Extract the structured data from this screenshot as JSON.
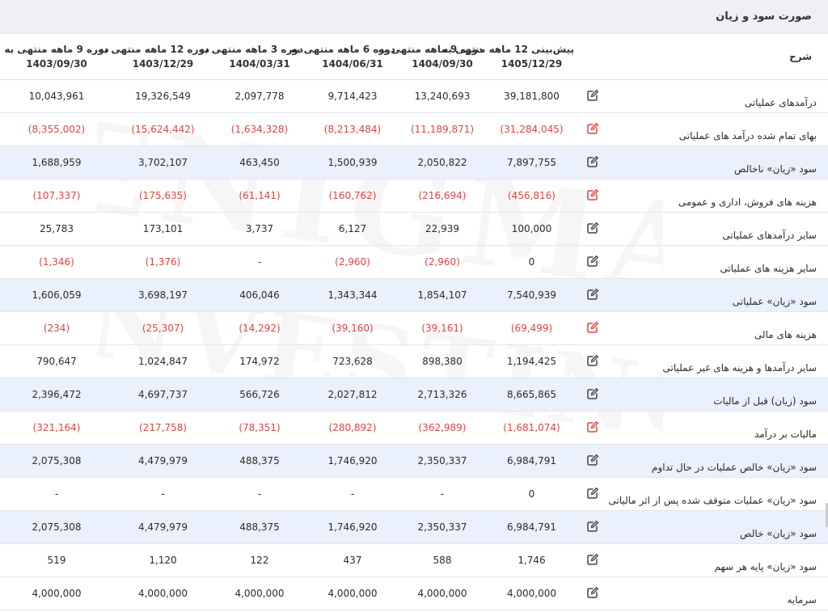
{
  "panel": {
    "title": "صورت سود و زیان"
  },
  "watermark": {
    "line1": "ENIGMA",
    "line2": "INVESTING"
  },
  "colors": {
    "highlight_row": "#eaf0fc",
    "negative": "#e0443e",
    "edit_dark": "#444444",
    "edit_red": "#e0443e"
  },
  "table": {
    "desc_header": "شرح",
    "periods": [
      {
        "line1": "پیش‌بینی 12 ماهه منتهی به",
        "line2": "1405/12/29"
      },
      {
        "line1": "دوره 9 ماهه منتهی به",
        "line2": "1404/09/30"
      },
      {
        "line1": "دوره 6 ماهه منتهی به",
        "line2": "1404/06/31"
      },
      {
        "line1": "دوره 3 ماهه منتهی به",
        "line2": "1404/03/31"
      },
      {
        "line1": "دوره 12 ماهه منتهی به",
        "line2": "1403/12/29"
      },
      {
        "line1": "دوره 9 ماهه منتهی به",
        "line2": "1403/09/30"
      }
    ],
    "rows": [
      {
        "label": "درآمدهای عملیاتی",
        "hl": false,
        "neg": false,
        "icon": "edit-icon",
        "values": [
          "39,181,800",
          "13,240,693",
          "9,714,423",
          "2,097,778",
          "19,326,549",
          "10,043,961"
        ]
      },
      {
        "label": "بهای تمام شده درآمد های عملیاتی",
        "hl": false,
        "neg": true,
        "icon": "edit-icon-red",
        "values": [
          "(31,284,045)",
          "(11,189,871)",
          "(8,213,484)",
          "(1,634,328)",
          "(15,624,442)",
          "(8,355,002)"
        ]
      },
      {
        "label": "سود «زیان» ناخالص",
        "hl": true,
        "neg": false,
        "icon": "edit-icon",
        "values": [
          "7,897,755",
          "2,050,822",
          "1,500,939",
          "463,450",
          "3,702,107",
          "1,688,959"
        ]
      },
      {
        "label": "هزینه های فروش، اداری و عمومی",
        "hl": false,
        "neg": true,
        "icon": "edit-icon-red",
        "values": [
          "(456,816)",
          "(216,694)",
          "(160,762)",
          "(61,141)",
          "(175,635)",
          "(107,337)"
        ]
      },
      {
        "label": "سایر درآمدهای عملیاتی",
        "hl": false,
        "neg": false,
        "icon": "edit-icon",
        "values": [
          "100,000",
          "22,939",
          "6,127",
          "3,737",
          "173,101",
          "25,783"
        ]
      },
      {
        "label": "سایر هزینه های عملیاتی",
        "hl": false,
        "neg": true,
        "icon": "edit-icon",
        "values": [
          "0",
          "(2,960)",
          "(2,960)",
          "-",
          "(1,376)",
          "(1,346)"
        ]
      },
      {
        "label": "سود «زیان» عملیاتی",
        "hl": true,
        "neg": false,
        "icon": "edit-icon",
        "values": [
          "7,540,939",
          "1,854,107",
          "1,343,344",
          "406,046",
          "3,698,197",
          "1,606,059"
        ]
      },
      {
        "label": "هزینه های مالی",
        "hl": false,
        "neg": true,
        "icon": "edit-icon-red",
        "values": [
          "(69,499)",
          "(39,161)",
          "(39,160)",
          "(14,292)",
          "(25,307)",
          "(234)"
        ]
      },
      {
        "label": "سایر درآمدها و هزینه های غیر عملیاتی",
        "hl": false,
        "neg": false,
        "icon": "edit-icon",
        "values": [
          "1,194,425",
          "898,380",
          "723,628",
          "174,972",
          "1,024,847",
          "790,647"
        ]
      },
      {
        "label": "سود (زیان) قبل از مالیات",
        "hl": true,
        "neg": false,
        "icon": "edit-icon",
        "values": [
          "8,665,865",
          "2,713,326",
          "2,027,812",
          "566,726",
          "4,697,737",
          "2,396,472"
        ]
      },
      {
        "label": "مالیات بر درآمد",
        "hl": false,
        "neg": true,
        "icon": "edit-icon-red",
        "values": [
          "(1,681,074)",
          "(362,989)",
          "(280,892)",
          "(78,351)",
          "(217,758)",
          "(321,164)"
        ]
      },
      {
        "label": "سود «زیان» خالص عملیات در حال تداوم",
        "hl": true,
        "neg": false,
        "icon": "edit-icon",
        "values": [
          "6,984,791",
          "2,350,337",
          "1,746,920",
          "488,375",
          "4,479,979",
          "2,075,308"
        ]
      },
      {
        "label": "سود «زیان» عملیات متوقف شده پس از اثر مالیاتی",
        "hl": false,
        "neg": false,
        "icon": "edit-icon",
        "values": [
          "0",
          "-",
          "-",
          "-",
          "-",
          "-"
        ]
      },
      {
        "label": "سود «زیان» خالص",
        "hl": true,
        "neg": false,
        "icon": "edit-icon",
        "values": [
          "6,984,791",
          "2,350,337",
          "1,746,920",
          "488,375",
          "4,479,979",
          "2,075,308"
        ]
      },
      {
        "label": "سود «زیان» پایه هر سهم",
        "hl": false,
        "neg": false,
        "icon": "edit-icon",
        "values": [
          "1,746",
          "588",
          "437",
          "122",
          "1,120",
          "519"
        ]
      },
      {
        "label": "سرمایه",
        "hl": false,
        "neg": false,
        "icon": "edit-icon",
        "values": [
          "4,000,000",
          "4,000,000",
          "4,000,000",
          "4,000,000",
          "4,000,000",
          "4,000,000"
        ]
      }
    ]
  }
}
